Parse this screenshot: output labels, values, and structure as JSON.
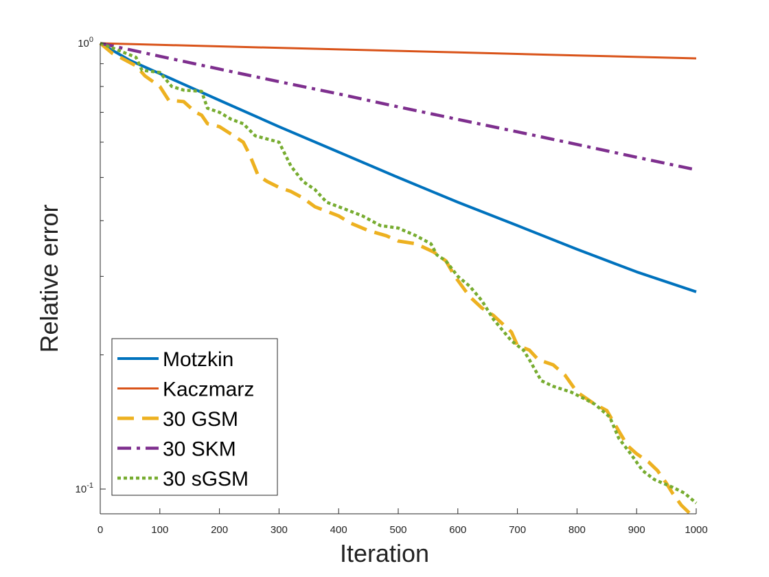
{
  "chart_data": {
    "type": "line",
    "title": "",
    "xlabel": "Iteration",
    "ylabel": "Relative error",
    "xlim": [
      0,
      1000
    ],
    "ylim": [
      0.088,
      1.0
    ],
    "yscale": "log",
    "xticks": [
      "0",
      "100",
      "200",
      "300",
      "400",
      "500",
      "600",
      "700",
      "800",
      "900",
      "1000"
    ],
    "yticks": [
      {
        "base": "10",
        "exp": "0",
        "value": 1.0
      },
      {
        "base": "10",
        "exp": "-1",
        "value": 0.1
      }
    ],
    "legend_position": "bottom-left",
    "series": [
      {
        "name": "Motzkin",
        "color": "#0072BD",
        "style": "solid",
        "points": [
          [
            0,
            1.0
          ],
          [
            50,
            0.915
          ],
          [
            100,
            0.855
          ],
          [
            200,
            0.745
          ],
          [
            300,
            0.65
          ],
          [
            400,
            0.57
          ],
          [
            500,
            0.5
          ],
          [
            600,
            0.44
          ],
          [
            700,
            0.39
          ],
          [
            800,
            0.345
          ],
          [
            900,
            0.307
          ],
          [
            1000,
            0.277
          ]
        ]
      },
      {
        "name": "Kaczmarz",
        "color": "#D95319",
        "style": "solid-thin",
        "points": [
          [
            0,
            1.0
          ],
          [
            200,
            0.984
          ],
          [
            400,
            0.969
          ],
          [
            600,
            0.954
          ],
          [
            800,
            0.939
          ],
          [
            1000,
            0.925
          ]
        ]
      },
      {
        "name": "30 GSM",
        "color": "#EDB120",
        "style": "dashed",
        "points": [
          [
            0,
            1.0
          ],
          [
            20,
            0.95
          ],
          [
            40,
            0.92
          ],
          [
            60,
            0.89
          ],
          [
            75,
            0.845
          ],
          [
            100,
            0.8
          ],
          [
            115,
            0.745
          ],
          [
            140,
            0.74
          ],
          [
            160,
            0.7
          ],
          [
            170,
            0.69
          ],
          [
            180,
            0.66
          ],
          [
            200,
            0.65
          ],
          [
            220,
            0.625
          ],
          [
            240,
            0.6
          ],
          [
            250,
            0.565
          ],
          [
            265,
            0.505
          ],
          [
            280,
            0.49
          ],
          [
            300,
            0.475
          ],
          [
            320,
            0.465
          ],
          [
            340,
            0.45
          ],
          [
            360,
            0.43
          ],
          [
            400,
            0.41
          ],
          [
            420,
            0.395
          ],
          [
            450,
            0.38
          ],
          [
            480,
            0.37
          ],
          [
            500,
            0.36
          ],
          [
            530,
            0.355
          ],
          [
            560,
            0.34
          ],
          [
            580,
            0.325
          ],
          [
            595,
            0.3
          ],
          [
            620,
            0.27
          ],
          [
            640,
            0.255
          ],
          [
            660,
            0.245
          ],
          [
            690,
            0.225
          ],
          [
            700,
            0.21
          ],
          [
            720,
            0.205
          ],
          [
            735,
            0.195
          ],
          [
            760,
            0.19
          ],
          [
            780,
            0.18
          ],
          [
            800,
            0.165
          ],
          [
            830,
            0.155
          ],
          [
            850,
            0.15
          ],
          [
            870,
            0.135
          ],
          [
            885,
            0.125
          ],
          [
            900,
            0.12
          ],
          [
            920,
            0.115
          ],
          [
            935,
            0.11
          ],
          [
            950,
            0.103
          ],
          [
            960,
            0.098
          ],
          [
            975,
            0.092
          ],
          [
            990,
            0.088
          ],
          [
            1000,
            0.088
          ]
        ]
      },
      {
        "name": "30 SKM",
        "color": "#7E2F8E",
        "style": "dashdot",
        "points": [
          [
            0,
            1.0
          ],
          [
            100,
            0.935
          ],
          [
            200,
            0.875
          ],
          [
            300,
            0.82
          ],
          [
            400,
            0.77
          ],
          [
            500,
            0.72
          ],
          [
            600,
            0.675
          ],
          [
            700,
            0.633
          ],
          [
            800,
            0.593
          ],
          [
            900,
            0.555
          ],
          [
            1000,
            0.52
          ]
        ]
      },
      {
        "name": "30 sGSM",
        "color": "#77AC30",
        "style": "dotted",
        "points": [
          [
            0,
            1.0
          ],
          [
            30,
            0.965
          ],
          [
            60,
            0.93
          ],
          [
            70,
            0.87
          ],
          [
            100,
            0.86
          ],
          [
            120,
            0.8
          ],
          [
            140,
            0.785
          ],
          [
            170,
            0.78
          ],
          [
            180,
            0.715
          ],
          [
            200,
            0.7
          ],
          [
            220,
            0.675
          ],
          [
            240,
            0.66
          ],
          [
            260,
            0.62
          ],
          [
            300,
            0.6
          ],
          [
            320,
            0.53
          ],
          [
            340,
            0.49
          ],
          [
            360,
            0.47
          ],
          [
            380,
            0.44
          ],
          [
            410,
            0.425
          ],
          [
            440,
            0.41
          ],
          [
            470,
            0.39
          ],
          [
            500,
            0.385
          ],
          [
            530,
            0.37
          ],
          [
            555,
            0.355
          ],
          [
            565,
            0.335
          ],
          [
            580,
            0.325
          ],
          [
            600,
            0.3
          ],
          [
            620,
            0.285
          ],
          [
            640,
            0.265
          ],
          [
            660,
            0.24
          ],
          [
            690,
            0.215
          ],
          [
            710,
            0.205
          ],
          [
            720,
            0.195
          ],
          [
            740,
            0.175
          ],
          [
            760,
            0.17
          ],
          [
            790,
            0.165
          ],
          [
            810,
            0.16
          ],
          [
            830,
            0.155
          ],
          [
            855,
            0.145
          ],
          [
            870,
            0.13
          ],
          [
            890,
            0.12
          ],
          [
            910,
            0.11
          ],
          [
            930,
            0.105
          ],
          [
            960,
            0.101
          ],
          [
            980,
            0.098
          ],
          [
            1000,
            0.093
          ]
        ]
      }
    ]
  }
}
